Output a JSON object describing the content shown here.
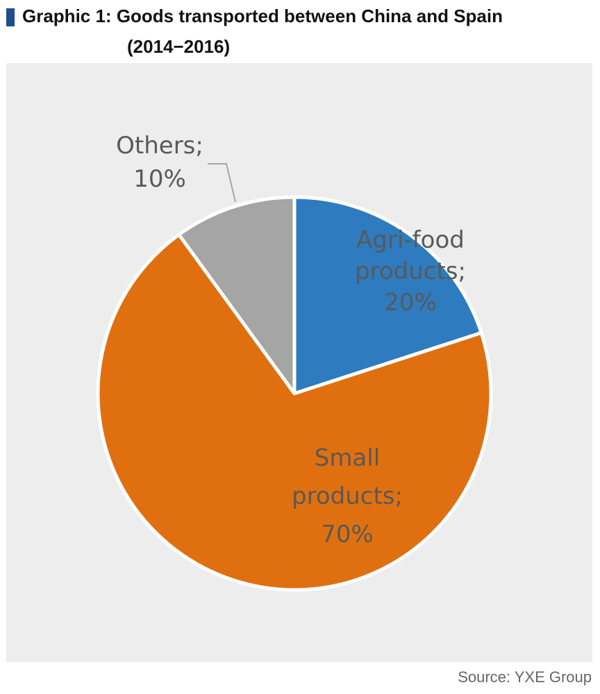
{
  "header": {
    "title_line1": "Graphic 1: Goods transported between China and Spain",
    "title_line2": "(2014−2016)"
  },
  "source": "Source: YXE Group",
  "chart_data": {
    "type": "pie",
    "title": "Graphic 1: Goods transported between China and Spain (2014−2016)",
    "slices": [
      {
        "label": "Agri-food products",
        "value": 20,
        "label_lines": [
          "Agri-food",
          "products;",
          "20%"
        ],
        "color": "#2e7bbf"
      },
      {
        "label": "Small products",
        "value": 70,
        "label_lines": [
          "Small",
          "products;",
          "70%"
        ],
        "color": "#e0700f"
      },
      {
        "label": "Others",
        "value": 10,
        "label_lines": [
          "Others;",
          "10%"
        ],
        "color": "#a5a5a5"
      }
    ],
    "legend": "none",
    "data_labels": "category; percentage"
  }
}
